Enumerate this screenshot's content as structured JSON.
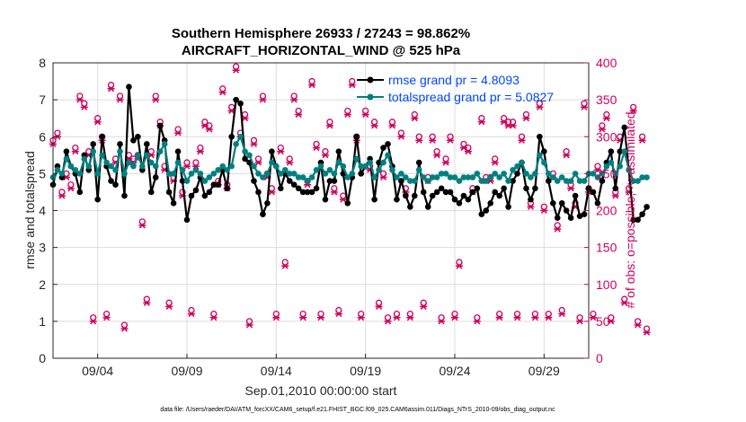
{
  "chart_data": {
    "type": "line",
    "title_line1": "Southern Hemisphere 26933 / 27243 = 98.862%",
    "title_line2": "AIRCRAFT_HORIZONTAL_WIND @ 525 hPa",
    "xlabel": "Sep.01,2010 00:00:00 start",
    "ylabel": "rmse and totalspread",
    "y2label": "# of obs: o=possible; ×=assimilated",
    "footnote": "data file: /Users/raeder/DAI/ATM_forcXX/CAM6_setup/f.e21.FHIST_BGC.f09_025.CAM6assim.011/Diags_NTrS_2010-09/obs_diag_output.nc",
    "xlim": [
      1.5,
      31.5
    ],
    "ylim": [
      0,
      8
    ],
    "y2lim": [
      0,
      400
    ],
    "xticks": [
      4,
      9,
      14,
      19,
      24,
      29
    ],
    "xtick_labels": [
      "09/04",
      "09/09",
      "09/14",
      "09/19",
      "09/24",
      "09/29"
    ],
    "yticks": [
      "0",
      "1",
      "2",
      "3",
      "4",
      "5",
      "6",
      "7",
      "8"
    ],
    "y2ticks": [
      "0",
      "50",
      "100",
      "150",
      "200",
      "250",
      "300",
      "350",
      "400"
    ],
    "colors": {
      "rmse": "#000000",
      "spread": "#008080",
      "obs": "#d1005a",
      "legend_text": "#0047ff",
      "grid": "#dcdcdc"
    },
    "series": [
      {
        "name": "rmse grand pr = 4.8093",
        "x_start": 1.5,
        "x_step": 0.25,
        "values": [
          4.7,
          5.2,
          4.9,
          5.6,
          5.2,
          5.0,
          4.5,
          5.5,
          5.1,
          5.8,
          4.3,
          6.0,
          5.2,
          4.8,
          4.7,
          5.8,
          4.4,
          7.35,
          5.9,
          6.0,
          5.1,
          5.8,
          4.5,
          4.9,
          6.3,
          5.9,
          4.5,
          4.2,
          5.6,
          4.8,
          3.75,
          4.4,
          4.55,
          4.9,
          4.4,
          4.5,
          4.7,
          4.7,
          5.1,
          4.6,
          6.0,
          7.0,
          6.9,
          5.4,
          5.3,
          4.8,
          4.5,
          3.9,
          4.2,
          5.6,
          5.2,
          4.6,
          5.0,
          4.8,
          4.7,
          4.6,
          4.5,
          4.5,
          4.5,
          4.6,
          5.3,
          4.3,
          4.8,
          4.8,
          5.6,
          5.0,
          4.2,
          4.9,
          6.0,
          5.0,
          5.2,
          5.4,
          4.3,
          5.3,
          5.7,
          5.8,
          5.2,
          4.3,
          4.8,
          4.4,
          4.1,
          4.4,
          5.3,
          4.5,
          4.1,
          4.4,
          4.5,
          4.6,
          4.5,
          4.5,
          4.3,
          4.2,
          4.4,
          4.3,
          4.5,
          4.6,
          3.9,
          4.0,
          4.2,
          4.5,
          4.4,
          4.6,
          4.1,
          4.8,
          5.0,
          5.3,
          4.6,
          4.3,
          4.6,
          6.0,
          5.6,
          4.8,
          4.2,
          3.8,
          4.2,
          4.0,
          3.8,
          4.4,
          3.85,
          3.9,
          4.6,
          4.5,
          4.2,
          4.8,
          5.3,
          5.6,
          4.6,
          5.6,
          6.25,
          5.1,
          3.75,
          3.75,
          3.9,
          4.1
        ]
      },
      {
        "name": "totalspread grand pr = 5.0827",
        "x_start": 1.5,
        "x_step": 0.25,
        "values": [
          4.9,
          5.1,
          5.0,
          5.4,
          5.2,
          5.1,
          5.0,
          5.4,
          5.2,
          5.6,
          5.0,
          5.5,
          5.3,
          5.2,
          5.1,
          5.6,
          5.0,
          5.3,
          5.2,
          5.5,
          5.2,
          5.5,
          5.3,
          5.2,
          5.6,
          5.8,
          5.0,
          5.0,
          5.3,
          5.1,
          4.8,
          5.0,
          5.1,
          5.0,
          4.8,
          4.9,
          5.0,
          5.1,
          5.2,
          5.1,
          5.2,
          5.8,
          6.0,
          5.6,
          5.5,
          5.2,
          5.0,
          4.9,
          5.0,
          5.3,
          5.2,
          5.0,
          5.1,
          5.0,
          5.0,
          4.9,
          4.9,
          4.8,
          4.9,
          5.1,
          5.2,
          5.0,
          5.1,
          5.0,
          5.3,
          5.2,
          4.9,
          5.0,
          5.4,
          5.2,
          5.2,
          5.3,
          4.9,
          5.1,
          5.3,
          5.5,
          5.1,
          4.9,
          5.0,
          4.9,
          4.8,
          4.8,
          5.1,
          4.9,
          4.8,
          4.9,
          4.9,
          5.0,
          5.0,
          4.9,
          4.9,
          4.8,
          4.9,
          4.9,
          4.9,
          5.0,
          4.8,
          4.8,
          4.9,
          5.0,
          4.9,
          5.0,
          4.8,
          5.1,
          5.2,
          5.3,
          5.0,
          4.9,
          5.0,
          5.5,
          5.3,
          5.0,
          4.9,
          4.8,
          4.9,
          4.8,
          4.8,
          5.0,
          4.8,
          4.8,
          5.0,
          5.0,
          4.9,
          5.0,
          5.2,
          5.3,
          5.0,
          5.2,
          5.6,
          5.1,
          4.8,
          4.8,
          4.9,
          4.9
        ]
      },
      {
        "name": "obs possible",
        "x_start": 1.5,
        "x_step": 0.25,
        "values": [
          295,
          305,
          225,
          250,
          235,
          285,
          355,
          345,
          280,
          55,
          325,
          300,
          60,
          370,
          270,
          355,
          45,
          275,
          270,
          275,
          185,
          80,
          280,
          355,
          320,
          260,
          75,
          245,
          310,
          225,
          265,
          65,
          265,
          285,
          320,
          315,
          60,
          240,
          365,
          235,
          340,
          395,
          305,
          330,
          50,
          295,
          270,
          355,
          250,
          230,
          60,
          285,
          130,
          270,
          355,
          335,
          60,
          240,
          375,
          290,
          60,
          280,
          320,
          230,
          65,
          220,
          335,
          375,
          300,
          60,
          335,
          260,
          320,
          75,
          250,
          55,
          320,
          60,
          305,
          230,
          60,
          330,
          300,
          75,
          245,
          300,
          280,
          55,
          270,
          300,
          60,
          130,
          290,
          285,
          230,
          55,
          325,
          245,
          245,
          270,
          60,
          325,
          320,
          320,
          60,
          300,
          330,
          210,
          60,
          345,
          205,
          60,
          250,
          180,
          65,
          280,
          235,
          210,
          55,
          345,
          230,
          60,
          260,
          315,
          330,
          55,
          225,
          300,
          80,
          230,
          340,
          50,
          300,
          40
        ]
      },
      {
        "name": "obs assimilated",
        "x_start": 1.5,
        "x_step": 0.25,
        "values": [
          290,
          300,
          220,
          245,
          230,
          280,
          350,
          340,
          275,
          50,
          320,
          295,
          55,
          365,
          265,
          350,
          40,
          270,
          265,
          270,
          180,
          75,
          275,
          350,
          315,
          255,
          70,
          240,
          305,
          220,
          260,
          60,
          260,
          280,
          315,
          310,
          55,
          235,
          360,
          230,
          335,
          390,
          300,
          325,
          45,
          290,
          265,
          350,
          245,
          225,
          55,
          280,
          125,
          265,
          350,
          330,
          55,
          235,
          370,
          285,
          55,
          275,
          315,
          225,
          60,
          215,
          330,
          370,
          295,
          55,
          330,
          255,
          315,
          70,
          245,
          50,
          315,
          55,
          300,
          225,
          55,
          325,
          295,
          70,
          240,
          295,
          275,
          50,
          265,
          295,
          55,
          125,
          285,
          280,
          225,
          50,
          320,
          240,
          240,
          265,
          55,
          320,
          315,
          315,
          55,
          295,
          325,
          205,
          55,
          340,
          200,
          55,
          245,
          175,
          60,
          275,
          230,
          205,
          50,
          340,
          225,
          55,
          255,
          310,
          325,
          50,
          220,
          295,
          75,
          225,
          335,
          45,
          295,
          35
        ]
      }
    ]
  }
}
